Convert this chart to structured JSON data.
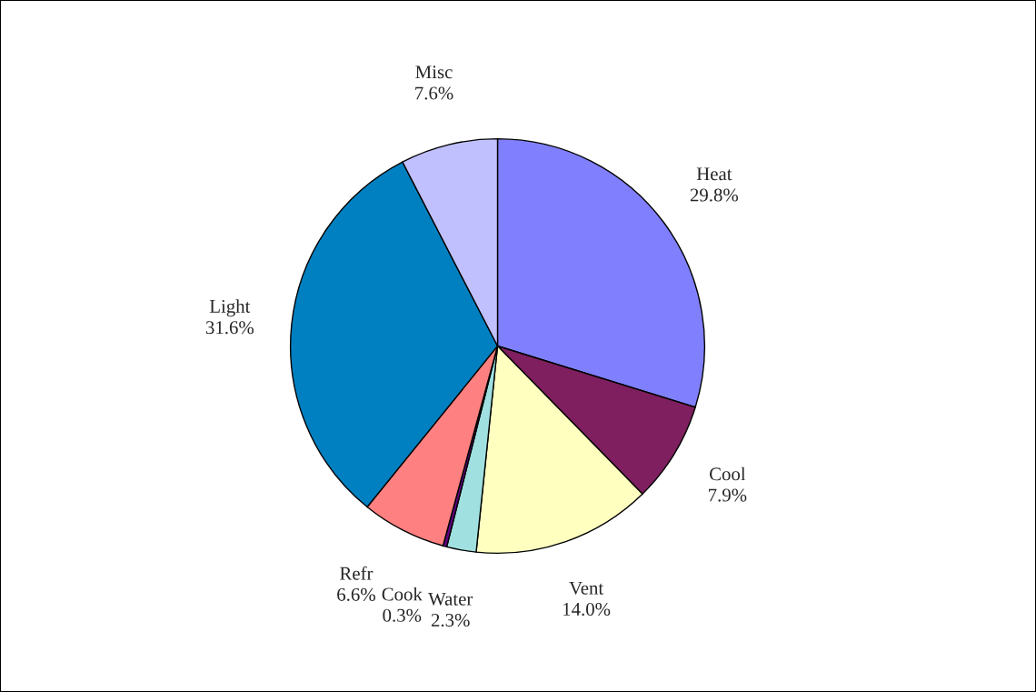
{
  "chart_data": {
    "type": "pie",
    "categories": [
      "Heat",
      "Cool",
      "Vent",
      "Water",
      "Cook",
      "Refr",
      "Light",
      "Misc"
    ],
    "values": [
      29.8,
      7.9,
      14.0,
      2.3,
      0.3,
      6.6,
      31.6,
      7.6
    ],
    "value_labels": [
      "29.8%",
      "7.9%",
      "14.0%",
      "2.3%",
      "0.3%",
      "6.6%",
      "31.6%",
      "7.6%"
    ],
    "colors": [
      "#8080ff",
      "#7f1f5f",
      "#ffffc0",
      "#a0e0e0",
      "#600080",
      "#ff8080",
      "#0080c0",
      "#c0c0ff"
    ],
    "legend": false
  }
}
